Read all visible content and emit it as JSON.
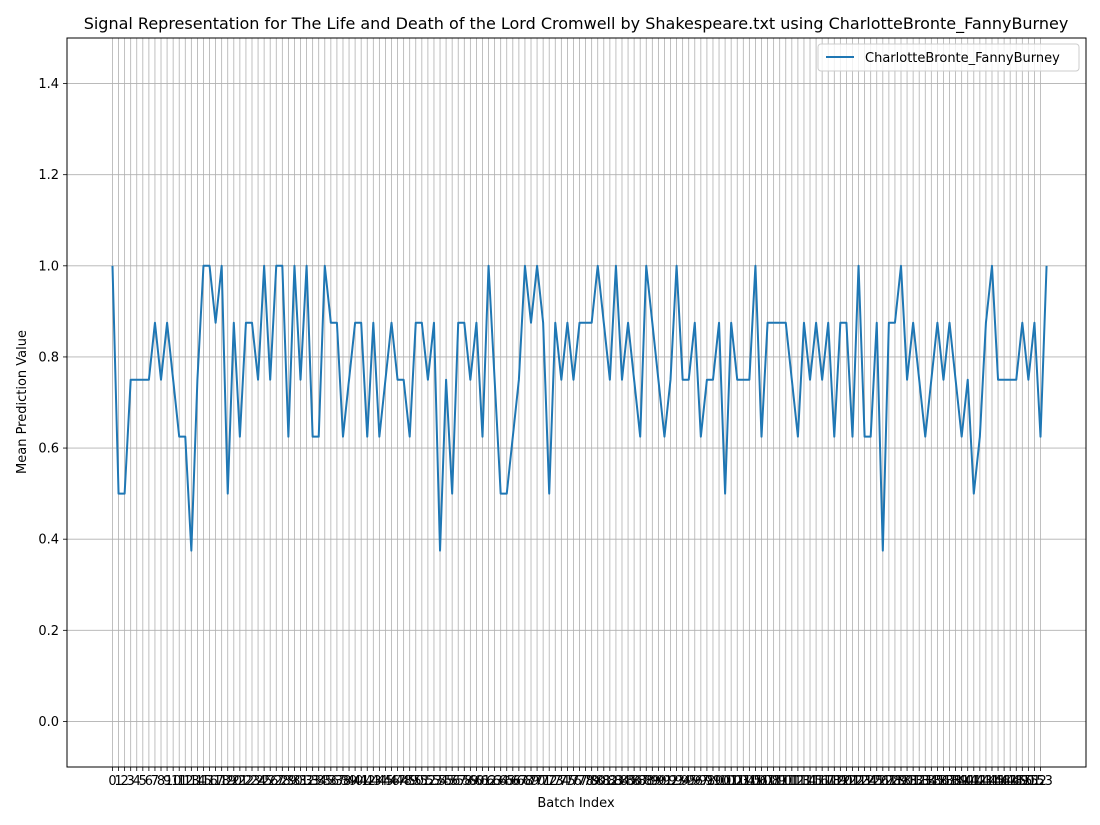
{
  "chart_data": {
    "type": "line",
    "title": "Signal Representation for The Life and Death of the Lord Cromwell by Shakespeare.txt using CharlotteBronte_FannyBurney",
    "xlabel": "Batch Index",
    "ylabel": "Mean Prediction Value",
    "ylim": [
      -0.1,
      1.5
    ],
    "xlim": [
      -7.5,
      160.5
    ],
    "yticks": [
      0.0,
      0.2,
      0.4,
      0.6,
      0.8,
      1.0,
      1.2,
      1.4
    ],
    "xticks_from": 0,
    "xticks_to": 153,
    "grid": true,
    "legend_position": "top-right",
    "series": [
      {
        "name": "CharlotteBronte_FannyBurney",
        "color": "#1f77b4",
        "values": [
          1.0,
          0.5,
          0.5,
          0.75,
          0.75,
          0.75,
          0.75,
          0.875,
          0.75,
          0.875,
          0.75,
          0.625,
          0.625,
          0.375,
          0.75,
          1.0,
          1.0,
          0.875,
          1.0,
          0.5,
          0.875,
          0.625,
          0.875,
          0.875,
          0.75,
          1.0,
          0.75,
          1.0,
          1.0,
          0.625,
          1.0,
          0.75,
          1.0,
          0.625,
          0.625,
          1.0,
          0.875,
          0.875,
          0.625,
          0.75,
          0.875,
          0.875,
          0.625,
          0.875,
          0.625,
          0.75,
          0.875,
          0.75,
          0.75,
          0.625,
          0.875,
          0.875,
          0.75,
          0.875,
          0.375,
          0.75,
          0.5,
          0.875,
          0.875,
          0.75,
          0.875,
          0.625,
          1.0,
          0.75,
          0.5,
          0.5,
          0.625,
          0.75,
          1.0,
          0.875,
          1.0,
          0.875,
          0.5,
          0.875,
          0.75,
          0.875,
          0.75,
          0.875,
          0.875,
          0.875,
          1.0,
          0.875,
          0.75,
          1.0,
          0.75,
          0.875,
          0.75,
          0.625,
          1.0,
          0.875,
          0.75,
          0.625,
          0.75,
          1.0,
          0.75,
          0.75,
          0.875,
          0.625,
          0.75,
          0.75,
          0.875,
          0.5,
          0.875,
          0.75,
          0.75,
          0.75,
          1.0,
          0.625,
          0.875,
          0.875,
          0.875,
          0.875,
          0.75,
          0.625,
          0.875,
          0.75,
          0.875,
          0.75,
          0.875,
          0.625,
          0.875,
          0.875,
          0.625,
          1.0,
          0.625,
          0.625,
          0.875,
          0.375,
          0.875,
          0.875,
          1.0,
          0.75,
          0.875,
          0.75,
          0.625,
          0.75,
          0.875,
          0.75,
          0.875,
          0.75,
          0.625,
          0.75,
          0.5,
          0.625,
          0.875,
          1.0,
          0.75,
          0.75,
          0.75,
          0.75,
          0.875,
          0.75,
          0.875,
          0.625,
          1.0
        ]
      }
    ]
  }
}
